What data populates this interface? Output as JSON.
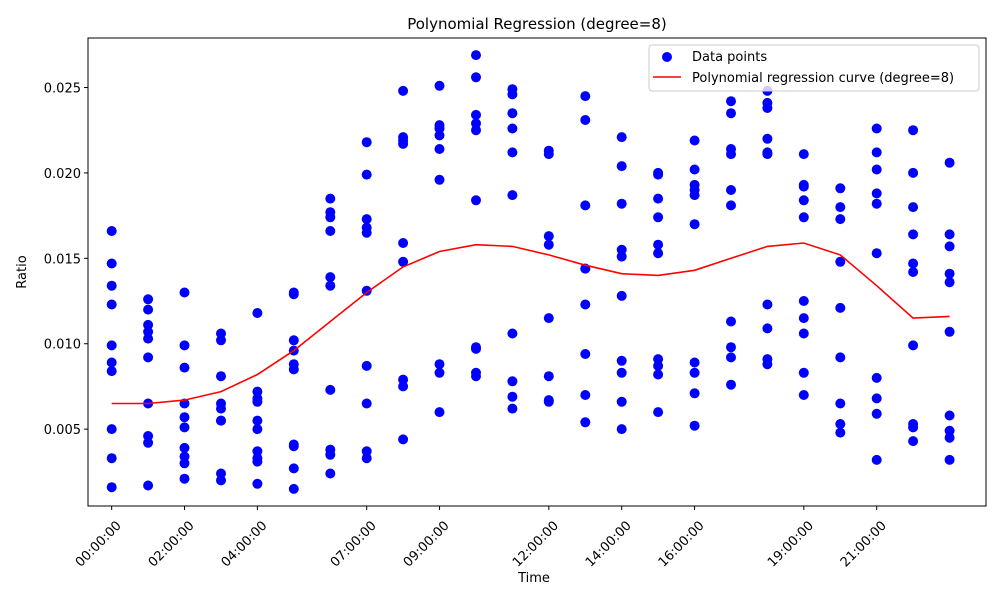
{
  "chart_data": {
    "type": "scatter",
    "title": "Polynomial Regression (degree=8)",
    "xlabel": "Time",
    "ylabel": "Ratio",
    "xlim": [
      -0.65,
      24.0
    ],
    "ylim": [
      0.0005,
      0.0279
    ],
    "x_ticks": [
      {
        "value": 0,
        "label": "00:00:00"
      },
      {
        "value": 2,
        "label": "02:00:00"
      },
      {
        "value": 4,
        "label": "04:00:00"
      },
      {
        "value": 7,
        "label": "07:00:00"
      },
      {
        "value": 9,
        "label": "09:00:00"
      },
      {
        "value": 12,
        "label": "12:00:00"
      },
      {
        "value": 14,
        "label": "14:00:00"
      },
      {
        "value": 16,
        "label": "16:00:00"
      },
      {
        "value": 19,
        "label": "19:00:00"
      },
      {
        "value": 21,
        "label": "21:00:00"
      }
    ],
    "y_ticks": [
      {
        "value": 0.005,
        "label": "0.005"
      },
      {
        "value": 0.01,
        "label": "0.010"
      },
      {
        "value": 0.015,
        "label": "0.015"
      },
      {
        "value": 0.02,
        "label": "0.020"
      },
      {
        "value": 0.025,
        "label": "0.025"
      }
    ],
    "grid": false,
    "legend_position": "top-right",
    "series": [
      {
        "name": "Data points",
        "kind": "scatter",
        "color": "#0000ff",
        "points": [
          [
            0,
            0.0166
          ],
          [
            0,
            0.0147
          ],
          [
            0,
            0.0134
          ],
          [
            0,
            0.0123
          ],
          [
            0,
            0.0099
          ],
          [
            0,
            0.0089
          ],
          [
            0,
            0.0084
          ],
          [
            0,
            0.005
          ],
          [
            0,
            0.0033
          ],
          [
            0,
            0.0016
          ],
          [
            1,
            0.0126
          ],
          [
            1,
            0.012
          ],
          [
            1,
            0.0111
          ],
          [
            1,
            0.0107
          ],
          [
            1,
            0.0103
          ],
          [
            1,
            0.0092
          ],
          [
            1,
            0.0065
          ],
          [
            1,
            0.0046
          ],
          [
            1,
            0.0042
          ],
          [
            1,
            0.0017
          ],
          [
            2,
            0.013
          ],
          [
            2,
            0.0099
          ],
          [
            2,
            0.0086
          ],
          [
            2,
            0.0065
          ],
          [
            2,
            0.0057
          ],
          [
            2,
            0.0051
          ],
          [
            2,
            0.0039
          ],
          [
            2,
            0.0034
          ],
          [
            2,
            0.003
          ],
          [
            2,
            0.0021
          ],
          [
            3,
            0.0106
          ],
          [
            3,
            0.0102
          ],
          [
            3,
            0.0081
          ],
          [
            3,
            0.0065
          ],
          [
            3,
            0.0062
          ],
          [
            3,
            0.0055
          ],
          [
            3,
            0.0055
          ],
          [
            3,
            0.0024
          ],
          [
            3,
            0.002
          ],
          [
            4,
            0.0118
          ],
          [
            4,
            0.0072
          ],
          [
            4,
            0.0068
          ],
          [
            4,
            0.0066
          ],
          [
            4,
            0.0055
          ],
          [
            4,
            0.005
          ],
          [
            4,
            0.0037
          ],
          [
            4,
            0.0033
          ],
          [
            4,
            0.0031
          ],
          [
            4,
            0.0018
          ],
          [
            5,
            0.013
          ],
          [
            5,
            0.0129
          ],
          [
            5,
            0.0102
          ],
          [
            5,
            0.0096
          ],
          [
            5,
            0.0088
          ],
          [
            5,
            0.0085
          ],
          [
            5,
            0.0041
          ],
          [
            5,
            0.004
          ],
          [
            5,
            0.0027
          ],
          [
            5,
            0.0015
          ],
          [
            6,
            0.0185
          ],
          [
            6,
            0.0177
          ],
          [
            6,
            0.0174
          ],
          [
            6,
            0.0166
          ],
          [
            6,
            0.0139
          ],
          [
            6,
            0.0134
          ],
          [
            6,
            0.0073
          ],
          [
            6,
            0.0038
          ],
          [
            6,
            0.0035
          ],
          [
            6,
            0.0024
          ],
          [
            7,
            0.0218
          ],
          [
            7,
            0.0199
          ],
          [
            7,
            0.0173
          ],
          [
            7,
            0.0168
          ],
          [
            7,
            0.0165
          ],
          [
            7,
            0.0131
          ],
          [
            7,
            0.0087
          ],
          [
            7,
            0.0065
          ],
          [
            7,
            0.0037
          ],
          [
            7,
            0.0033
          ],
          [
            8,
            0.0248
          ],
          [
            8,
            0.0221
          ],
          [
            8,
            0.0219
          ],
          [
            8,
            0.0217
          ],
          [
            8,
            0.0159
          ],
          [
            8,
            0.0148
          ],
          [
            8,
            0.0079
          ],
          [
            8,
            0.0075
          ],
          [
            8,
            0.0044
          ],
          [
            9,
            0.0251
          ],
          [
            9,
            0.0228
          ],
          [
            9,
            0.0226
          ],
          [
            9,
            0.0222
          ],
          [
            9,
            0.0214
          ],
          [
            9,
            0.0196
          ],
          [
            9,
            0.0088
          ],
          [
            9,
            0.0083
          ],
          [
            9,
            0.006
          ],
          [
            10,
            0.0269
          ],
          [
            10,
            0.0256
          ],
          [
            10,
            0.0234
          ],
          [
            10,
            0.0229
          ],
          [
            10,
            0.0225
          ],
          [
            10,
            0.0184
          ],
          [
            10,
            0.0098
          ],
          [
            10,
            0.0097
          ],
          [
            10,
            0.0083
          ],
          [
            10,
            0.0081
          ],
          [
            11,
            0.0249
          ],
          [
            11,
            0.0246
          ],
          [
            11,
            0.0235
          ],
          [
            11,
            0.0226
          ],
          [
            11,
            0.0212
          ],
          [
            11,
            0.0187
          ],
          [
            11,
            0.0106
          ],
          [
            11,
            0.0078
          ],
          [
            11,
            0.0069
          ],
          [
            11,
            0.0062
          ],
          [
            12,
            0.0213
          ],
          [
            12,
            0.0211
          ],
          [
            12,
            0.0163
          ],
          [
            12,
            0.0158
          ],
          [
            12,
            0.0115
          ],
          [
            12,
            0.0081
          ],
          [
            12,
            0.0067
          ],
          [
            12,
            0.0066
          ],
          [
            13,
            0.0245
          ],
          [
            13,
            0.0231
          ],
          [
            13,
            0.0181
          ],
          [
            13,
            0.0144
          ],
          [
            13,
            0.0144
          ],
          [
            13,
            0.0123
          ],
          [
            13,
            0.0094
          ],
          [
            13,
            0.007
          ],
          [
            13,
            0.0054
          ],
          [
            14,
            0.0221
          ],
          [
            14,
            0.0204
          ],
          [
            14,
            0.0182
          ],
          [
            14,
            0.0155
          ],
          [
            14,
            0.0151
          ],
          [
            14,
            0.0128
          ],
          [
            14,
            0.009
          ],
          [
            14,
            0.0083
          ],
          [
            14,
            0.0066
          ],
          [
            14,
            0.005
          ],
          [
            15,
            0.02
          ],
          [
            15,
            0.0199
          ],
          [
            15,
            0.0185
          ],
          [
            15,
            0.0174
          ],
          [
            15,
            0.0158
          ],
          [
            15,
            0.0153
          ],
          [
            15,
            0.0091
          ],
          [
            15,
            0.0087
          ],
          [
            15,
            0.0082
          ],
          [
            15,
            0.006
          ],
          [
            16,
            0.0219
          ],
          [
            16,
            0.0202
          ],
          [
            16,
            0.0193
          ],
          [
            16,
            0.019
          ],
          [
            16,
            0.0187
          ],
          [
            16,
            0.017
          ],
          [
            16,
            0.0089
          ],
          [
            16,
            0.0083
          ],
          [
            16,
            0.0071
          ],
          [
            16,
            0.0052
          ],
          [
            17,
            0.0242
          ],
          [
            17,
            0.0235
          ],
          [
            17,
            0.0214
          ],
          [
            17,
            0.0211
          ],
          [
            17,
            0.019
          ],
          [
            17,
            0.0181
          ],
          [
            17,
            0.0113
          ],
          [
            17,
            0.0098
          ],
          [
            17,
            0.0092
          ],
          [
            17,
            0.0076
          ],
          [
            18,
            0.0248
          ],
          [
            18,
            0.0241
          ],
          [
            18,
            0.0238
          ],
          [
            18,
            0.022
          ],
          [
            18,
            0.0212
          ],
          [
            18,
            0.0211
          ],
          [
            18,
            0.0123
          ],
          [
            18,
            0.0109
          ],
          [
            18,
            0.0091
          ],
          [
            18,
            0.0088
          ],
          [
            19,
            0.0211
          ],
          [
            19,
            0.0193
          ],
          [
            19,
            0.0192
          ],
          [
            19,
            0.0184
          ],
          [
            19,
            0.0174
          ],
          [
            19,
            0.0125
          ],
          [
            19,
            0.0115
          ],
          [
            19,
            0.0106
          ],
          [
            19,
            0.0083
          ],
          [
            19,
            0.007
          ],
          [
            20,
            0.0191
          ],
          [
            20,
            0.018
          ],
          [
            20,
            0.0173
          ],
          [
            20,
            0.0148
          ],
          [
            20,
            0.0121
          ],
          [
            20,
            0.0092
          ],
          [
            20,
            0.0065
          ],
          [
            20,
            0.0053
          ],
          [
            20,
            0.0048
          ],
          [
            21,
            0.0226
          ],
          [
            21,
            0.0212
          ],
          [
            21,
            0.0202
          ],
          [
            21,
            0.0188
          ],
          [
            21,
            0.0182
          ],
          [
            21,
            0.0153
          ],
          [
            21,
            0.008
          ],
          [
            21,
            0.0068
          ],
          [
            21,
            0.0059
          ],
          [
            21,
            0.0032
          ],
          [
            22,
            0.0225
          ],
          [
            22,
            0.02
          ],
          [
            22,
            0.018
          ],
          [
            22,
            0.0164
          ],
          [
            22,
            0.0147
          ],
          [
            22,
            0.0142
          ],
          [
            22,
            0.0099
          ],
          [
            22,
            0.0053
          ],
          [
            22,
            0.0051
          ],
          [
            22,
            0.0043
          ],
          [
            23,
            0.0206
          ],
          [
            23,
            0.0164
          ],
          [
            23,
            0.0157
          ],
          [
            23,
            0.0141
          ],
          [
            23,
            0.0136
          ],
          [
            23,
            0.0107
          ],
          [
            23,
            0.0058
          ],
          [
            23,
            0.0049
          ],
          [
            23,
            0.0045
          ],
          [
            23,
            0.0032
          ]
        ]
      },
      {
        "name": "Polynomial regression curve (degree=8)",
        "kind": "line",
        "color": "#ff0000",
        "x": [
          0,
          1,
          2,
          3,
          4,
          5,
          6,
          7,
          8,
          9,
          10,
          11,
          12,
          13,
          14,
          15,
          16,
          17,
          18,
          19,
          20,
          21,
          22,
          23
        ],
        "y": [
          0.0065,
          0.0065,
          0.0067,
          0.0072,
          0.0082,
          0.0096,
          0.0113,
          0.013,
          0.0145,
          0.0154,
          0.0158,
          0.0157,
          0.0152,
          0.0146,
          0.0141,
          0.014,
          0.0143,
          0.015,
          0.0157,
          0.0159,
          0.0152,
          0.0134,
          0.0115,
          0.0116
        ]
      }
    ]
  }
}
